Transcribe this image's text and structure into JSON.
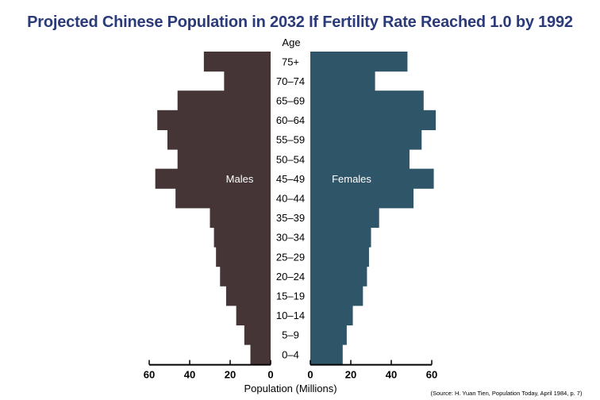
{
  "chart_data": {
    "type": "bar",
    "title": "Projected Chinese Population in 2032 If Fertility Rate Reached 1.0 by 1992",
    "category_axis_label": "Age",
    "xlabel": "Population (Millions)",
    "xlim": [
      0,
      60
    ],
    "x_ticks": [
      "60",
      "40",
      "20",
      "0",
      "0",
      "20",
      "40",
      "60"
    ],
    "categories": [
      "75+",
      "70–74",
      "65–69",
      "60–64",
      "55–59",
      "50–54",
      "45–49",
      "40–44",
      "35–39",
      "30–34",
      "25–29",
      "20–24",
      "15–19",
      "10–14",
      "5–9",
      "0–4"
    ],
    "series": [
      {
        "name": "Males",
        "color": "#453536",
        "values": [
          33,
          23,
          46,
          56,
          51,
          46,
          57,
          47,
          30,
          28,
          27,
          25,
          22,
          17,
          13,
          10
        ]
      },
      {
        "name": "Females",
        "color": "#2f5568",
        "values": [
          48,
          32,
          56,
          62,
          55,
          49,
          61,
          51,
          34,
          30,
          29,
          28,
          26,
          21,
          18,
          16
        ]
      }
    ],
    "grid": false,
    "source": "(Source: H. Yuan Tien, Population Today, April 1984, p. 7)"
  }
}
